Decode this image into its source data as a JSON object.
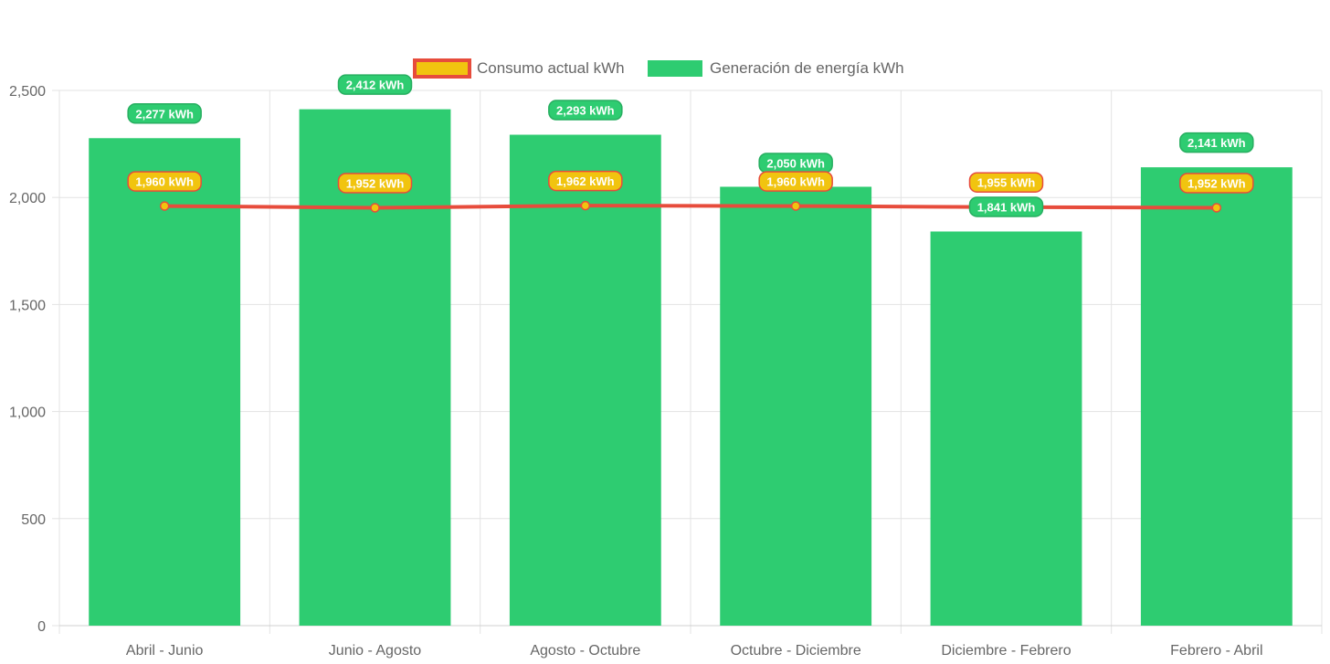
{
  "chart_data": {
    "type": "bar",
    "categories": [
      "Abril - Junio",
      "Junio - Agosto",
      "Agosto - Octubre",
      "Octubre - Diciembre",
      "Diciembre - Febrero",
      "Febrero - Abril"
    ],
    "series": [
      {
        "name": "Consumo actual kWh",
        "type": "line",
        "values": [
          1960,
          1952,
          1962,
          1960,
          1955,
          1952
        ],
        "labels": [
          "1,960 kWh",
          "1,952 kWh",
          "1,962 kWh",
          "1,960 kWh",
          "1,955 kWh",
          "1,952 kWh"
        ],
        "line_color": "#e74c3c",
        "fill_color": "#f1c40f"
      },
      {
        "name": "Generación de energía kWh",
        "type": "bar",
        "values": [
          2277,
          2412,
          2293,
          2050,
          1841,
          2141
        ],
        "labels": [
          "2,277 kWh",
          "2,412 kWh",
          "2,293 kWh",
          "2,050 kWh",
          "1,841 kWh",
          "2,141 kWh"
        ],
        "color": "#2ecc71"
      }
    ],
    "y_ticks": [
      "0",
      "500",
      "1,000",
      "1,500",
      "2,000",
      "2,500"
    ],
    "ylim": [
      0,
      2500
    ],
    "grid": true,
    "legend_position": "top-center"
  }
}
